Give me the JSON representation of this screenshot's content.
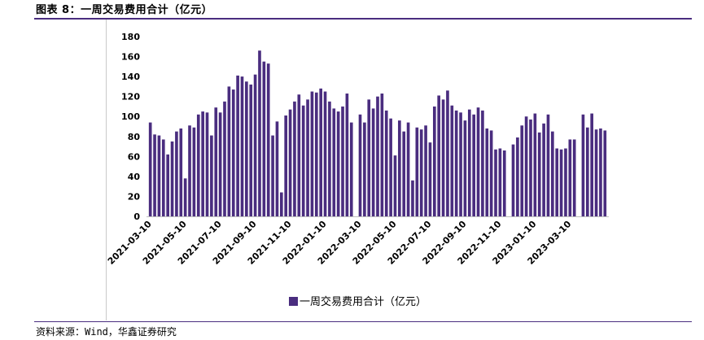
{
  "figure": {
    "title": "图表 8：一周交易费用合计（亿元）",
    "source": "资料来源：Wind，华鑫证券研究"
  },
  "chart_data": {
    "type": "bar",
    "title": "",
    "xlabel": "",
    "ylabel": "",
    "ylim": [
      0,
      180
    ],
    "yticks": [
      0,
      20,
      40,
      60,
      80,
      100,
      120,
      140,
      160,
      180
    ],
    "grid": false,
    "legend_position": "bottom-center",
    "bar_color": "#4a2d7f",
    "xtick_labels": [
      "2021-03-10",
      "2021-05-10",
      "2021-07-10",
      "2021-09-10",
      "2021-11-10",
      "2022-01-10",
      "2022-03-10",
      "2022-05-10",
      "2022-07-10",
      "2022-09-10",
      "2022-11-10",
      "2023-01-10",
      "2023-03-10"
    ],
    "series": [
      {
        "name": "一周交易费用合计（亿元）",
        "values": [
          94,
          82,
          81,
          77,
          62,
          75,
          85,
          88,
          38,
          91,
          89,
          102,
          105,
          104,
          81,
          109,
          104,
          115,
          130,
          127,
          141,
          140,
          135,
          132,
          142,
          166,
          155,
          153,
          81,
          95,
          24,
          101,
          107,
          115,
          122,
          111,
          117,
          125,
          124,
          128,
          125,
          115,
          108,
          105,
          110,
          123,
          94,
          null,
          102,
          94,
          117,
          108,
          120,
          123,
          106,
          98,
          61,
          96,
          85,
          94,
          36,
          89,
          87,
          91,
          74,
          110,
          121,
          117,
          126,
          111,
          106,
          104,
          96,
          107,
          102,
          109,
          106,
          88,
          86,
          67,
          68,
          66,
          null,
          72,
          79,
          91,
          100,
          97,
          103,
          84,
          93,
          102,
          85,
          68,
          67,
          68,
          77,
          77,
          null,
          102,
          89,
          103,
          87,
          88,
          86
        ]
      }
    ]
  }
}
